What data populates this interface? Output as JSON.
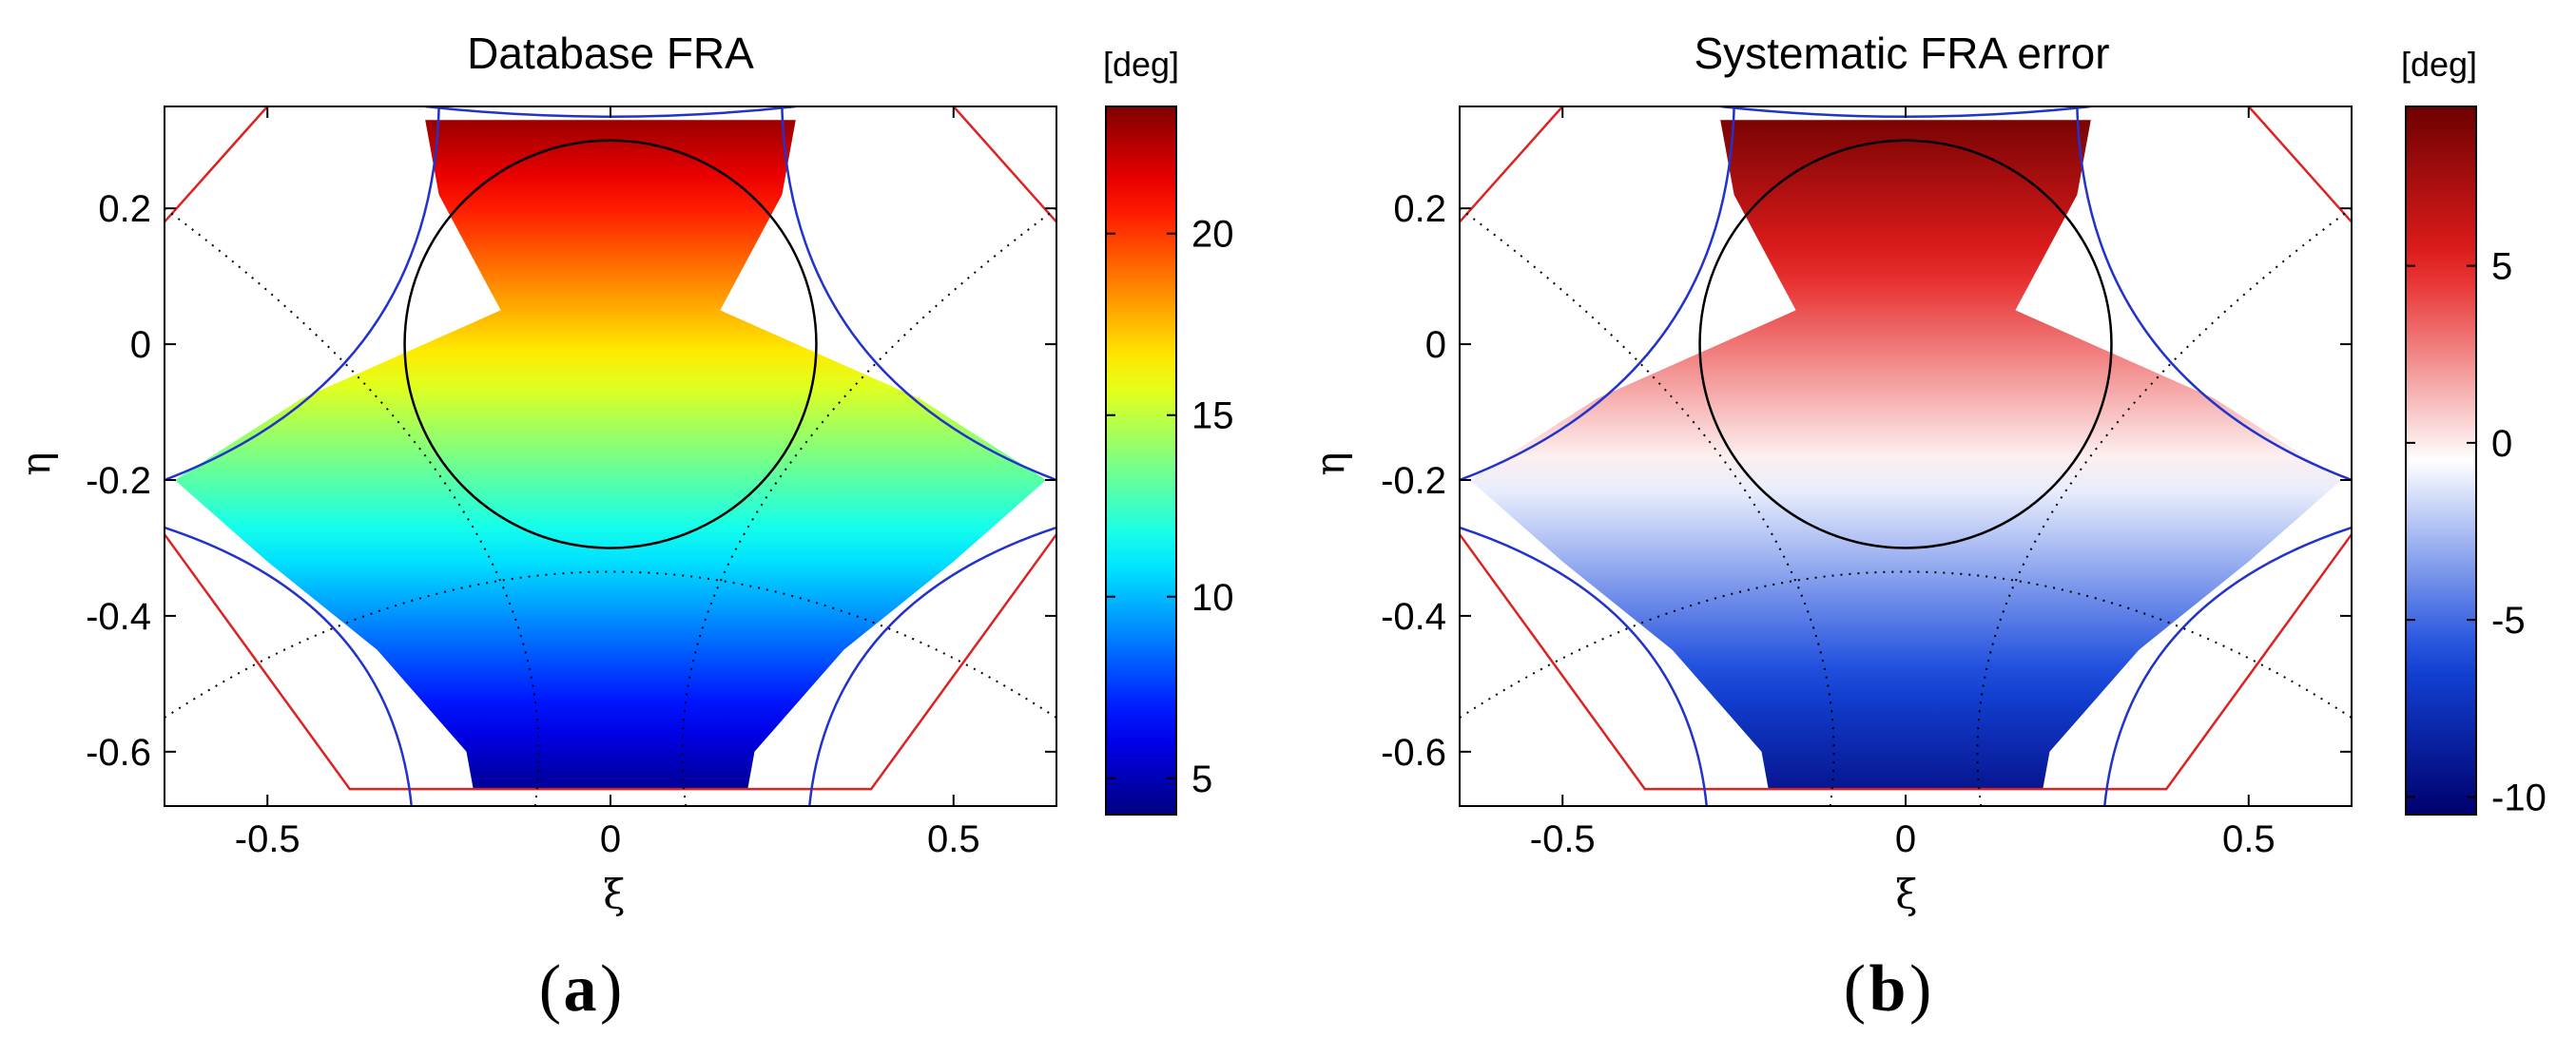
{
  "chart_data": [
    {
      "type": "heatmap",
      "panel": "a",
      "title": "Database FRA",
      "xlabel": "ξ",
      "ylabel": "η",
      "xlim": [
        -0.65,
        0.65
      ],
      "ylim": [
        -0.68,
        0.35
      ],
      "xticks": [
        -0.5,
        0,
        0.5
      ],
      "xtick_labels": [
        "-0.5",
        "0",
        "0.5"
      ],
      "yticks": [
        0.2,
        0,
        -0.2,
        -0.4,
        -0.6
      ],
      "ytick_labels": [
        "0.2",
        "0",
        "-0.2",
        "-0.4",
        "-0.6"
      ],
      "colorbar": {
        "unit": "[deg]",
        "range": [
          4,
          23.5
        ],
        "ticks": [
          20,
          15,
          10,
          5
        ],
        "tick_labels": [
          "20",
          "15",
          "10",
          "5"
        ],
        "colormap": "jet"
      },
      "field": {
        "description_values": "value at y=-0.65 approx 4.5 deg, rising linearly to approx 23 deg at y=0.33",
        "y_at_min": -0.65,
        "value_at_min": 4.5,
        "y_at_max": 0.33,
        "value_at_max": 23
      },
      "circle": {
        "center": [
          0,
          0
        ],
        "radius": 0.3
      }
    },
    {
      "type": "heatmap",
      "panel": "b",
      "title": "Systematic FRA error",
      "xlabel": "ξ",
      "ylabel": "η",
      "xlim": [
        -0.65,
        0.65
      ],
      "ylim": [
        -0.68,
        0.35
      ],
      "xticks": [
        -0.5,
        0,
        0.5
      ],
      "xtick_labels": [
        "-0.5",
        "0",
        "0.5"
      ],
      "yticks": [
        0.2,
        0,
        -0.2,
        -0.4,
        -0.6
      ],
      "ytick_labels": [
        "0.2",
        "0",
        "-0.2",
        "-0.4",
        "-0.6"
      ],
      "colorbar": {
        "unit": "[deg]",
        "range": [
          -10.5,
          9.5
        ],
        "ticks": [
          5,
          0,
          -5,
          -10
        ],
        "tick_labels": [
          "5",
          "0",
          "-5",
          "-10"
        ],
        "colormap": "blue-white-red"
      },
      "field": {
        "y_at_min": -0.65,
        "value_at_min": -9,
        "y_at_max": 0.33,
        "value_at_max": 9
      },
      "circle": {
        "center": [
          0,
          0
        ],
        "radius": 0.3
      }
    }
  ],
  "labels": {
    "a": {
      "open": "(",
      "letter": "a",
      "close": ")"
    },
    "b": {
      "open": "(",
      "letter": "b",
      "close": ")"
    }
  },
  "colors": {
    "boundary_blue": "#2233cc",
    "boundary_red": "#dd2222",
    "circle": "#000000"
  }
}
